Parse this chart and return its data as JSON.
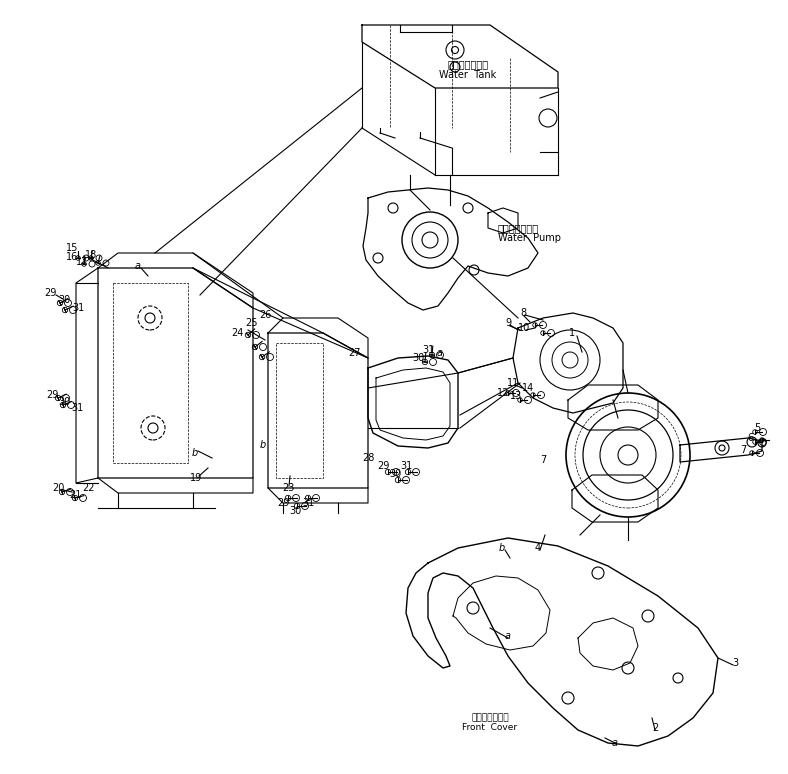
{
  "title": "",
  "bg_color": "#ffffff",
  "line_color": "#000000",
  "fig_width": 7.88,
  "fig_height": 7.74,
  "dpi": 100,
  "labels": {
    "water_tank_jp": "ウォータタンク",
    "water_tank_en": "Water  Tank",
    "water_pump_jp": "ウォータポンプ",
    "water_pump_en": "Water  Pump",
    "front_cover_jp": "フロントカバー",
    "front_cover_en": "Front  Cover"
  }
}
